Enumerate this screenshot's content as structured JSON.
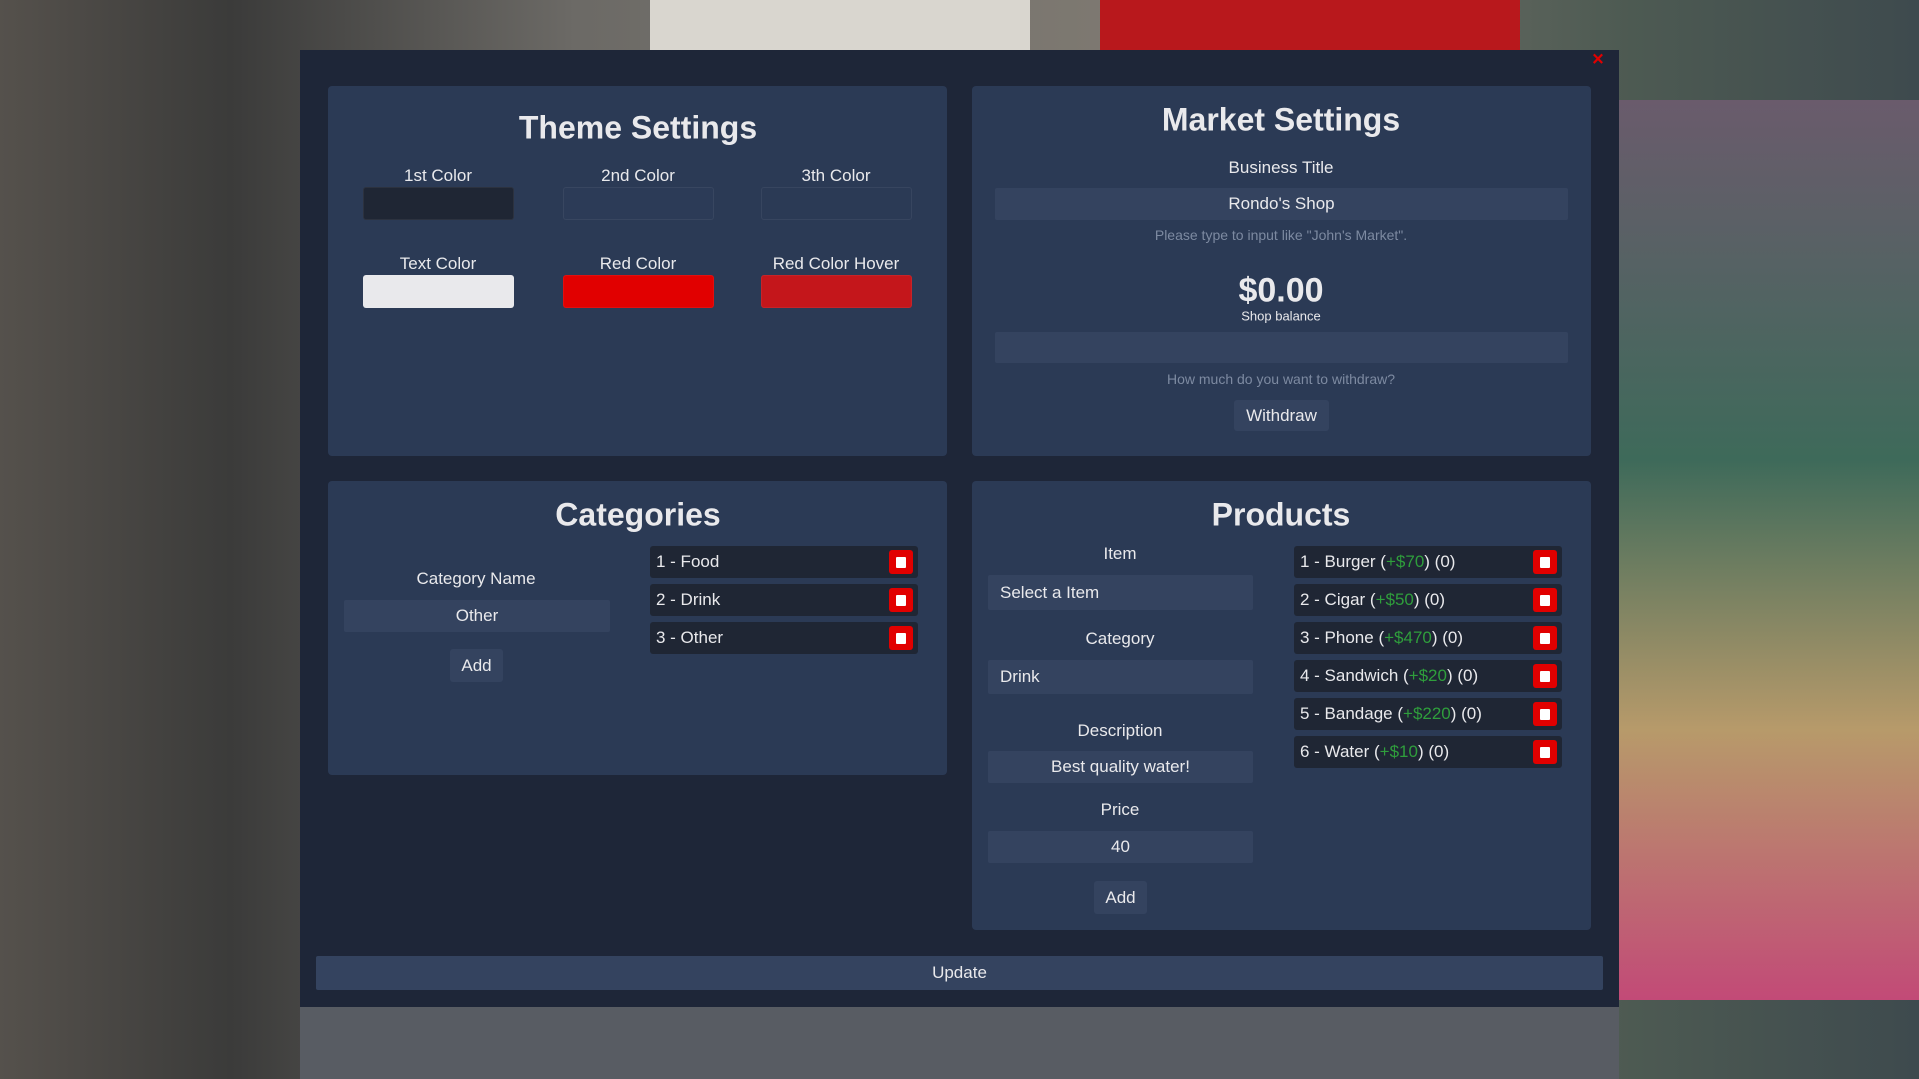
{
  "close": "×",
  "theme_settings": {
    "title": "Theme Settings",
    "colors": [
      {
        "label": "1st Color",
        "color": "#1f2634"
      },
      {
        "label": "2nd Color",
        "color": "#2c3b57"
      },
      {
        "label": "3th Color",
        "color": "#2b3a55"
      },
      {
        "label": "Text Color",
        "color": "#e9e9ec"
      },
      {
        "label": "Red Color",
        "color": "#e10000"
      },
      {
        "label": "Red Color Hover",
        "color": "#c4161b"
      }
    ]
  },
  "market_settings": {
    "title": "Market Settings",
    "business_title_label": "Business Title",
    "business_title_value": "Rondo's Shop",
    "business_hint": "Please type to input like \"John's Market\".",
    "balance": "$0.00",
    "balance_label": "Shop balance",
    "withdraw_hint": "How much do you want to withdraw?",
    "withdraw_button": "Withdraw"
  },
  "categories": {
    "title": "Categories",
    "name_label": "Category Name",
    "name_value": "Other",
    "add_button": "Add",
    "items": [
      "1 - Food",
      "2 - Drink",
      "3 - Other"
    ]
  },
  "products": {
    "title": "Products",
    "item_label": "Item",
    "item_value": "Select a Item",
    "category_label": "Category",
    "category_value": "Drink",
    "description_label": "Description",
    "description_value": "Best quality water!",
    "price_label": "Price",
    "price_value": "40",
    "add_button": "Add",
    "items": [
      {
        "prefix": "1 - Burger (",
        "price": "+$70",
        "suffix": ") (0)"
      },
      {
        "prefix": "2 - Cigar (",
        "price": "+$50",
        "suffix": ") (0)"
      },
      {
        "prefix": "3 - Phone (",
        "price": "+$470",
        "suffix": ") (0)"
      },
      {
        "prefix": "4 - Sandwich (",
        "price": "+$20",
        "suffix": ") (0)"
      },
      {
        "prefix": "5 - Bandage (",
        "price": "+$220",
        "suffix": ") (0)"
      },
      {
        "prefix": "6 - Water (",
        "price": "+$10",
        "suffix": ") (0)"
      }
    ]
  },
  "update_button": "Update"
}
